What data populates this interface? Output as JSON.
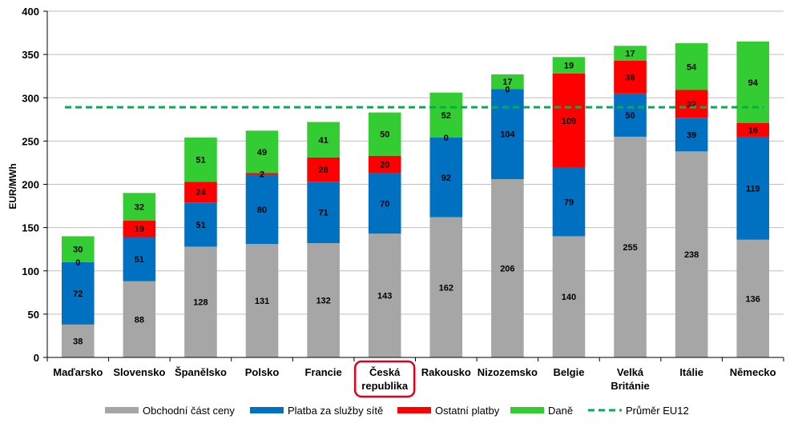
{
  "chart_data": {
    "type": "bar",
    "stacked": true,
    "ylabel": "EUR/MWh",
    "xlabel": "",
    "ylim": [
      0,
      400
    ],
    "ytick_step": 50,
    "grid": true,
    "legend_position": "bottom",
    "categories": [
      "Maďarsko",
      "Slovensko",
      "Španělsko",
      "Polsko",
      "Francie",
      "Česká republika",
      "Rakousko",
      "Nizozemsko",
      "Belgie",
      "Velká Británie",
      "Itálie",
      "Německo"
    ],
    "category_lines": [
      [
        "Maďarsko"
      ],
      [
        "Slovensko"
      ],
      [
        "Španělsko"
      ],
      [
        "Polsko"
      ],
      [
        "Francie"
      ],
      [
        "Česká",
        "republika"
      ],
      [
        "Rakousko"
      ],
      [
        "Nizozemsko"
      ],
      [
        "Belgie"
      ],
      [
        "Velká",
        "Británie"
      ],
      [
        "Itálie"
      ],
      [
        "Německo"
      ]
    ],
    "highlighted_category": "Česká republika",
    "series": [
      {
        "name": "Obchodní část ceny",
        "color": "#A6A6A6",
        "values": [
          38,
          88,
          128,
          131,
          132,
          143,
          162,
          206,
          140,
          255,
          238,
          136
        ]
      },
      {
        "name": "Platba za služby sítě",
        "color": "#0070C0",
        "values": [
          72,
          51,
          51,
          80,
          71,
          70,
          92,
          104,
          79,
          50,
          39,
          119
        ]
      },
      {
        "name": "Ostatní platby",
        "color": "#FF0000",
        "values": [
          0,
          19,
          24,
          2,
          28,
          20,
          0,
          0,
          109,
          38,
          32,
          16
        ]
      },
      {
        "name": "Daně",
        "color": "#33CC33",
        "values": [
          30,
          32,
          51,
          49,
          41,
          50,
          52,
          17,
          19,
          17,
          54,
          94
        ]
      }
    ],
    "reference_line": {
      "name": "Průměr EU12",
      "value": 289,
      "color": "#00B050",
      "style": "dashed"
    }
  }
}
